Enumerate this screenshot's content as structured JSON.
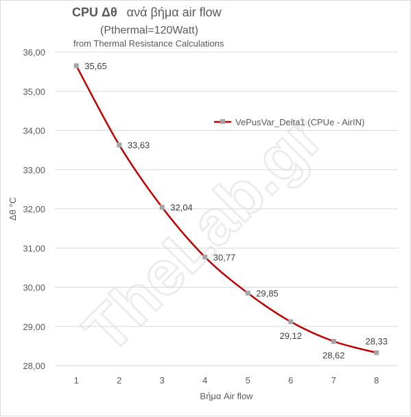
{
  "chart_data": {
    "type": "line",
    "title": {
      "bold_part": "CPU  Δθ",
      "rest": "ανά βήμα air flow"
    },
    "subtitle": "(Pthermal=120Watt)",
    "note": "from Thermal Resistance Calculations",
    "xlabel": "Βήμα  Air flow",
    "ylabel": "Δθ °C",
    "categories": [
      "1",
      "2",
      "3",
      "4",
      "5",
      "6",
      "7",
      "8"
    ],
    "series": [
      {
        "name": "VePusVar_Delta1 (CPUe - AirIN)",
        "values": [
          35.65,
          33.63,
          32.04,
          30.77,
          29.85,
          29.12,
          28.62,
          28.33
        ],
        "labels": [
          "35,65",
          "33,63",
          "32,04",
          "30,77",
          "29,85",
          "29,12",
          "28,62",
          "28,33"
        ],
        "line_color": "#c00000",
        "marker_color": "#a5a5a5"
      }
    ],
    "ylim": [
      28,
      36
    ],
    "yticks": [
      "28,00",
      "29,00",
      "30,00",
      "31,00",
      "32,00",
      "33,00",
      "34,00",
      "35,00",
      "36,00"
    ],
    "grid": true,
    "legend_position": "right",
    "smooth": true
  },
  "watermark": "TheLab.gr"
}
